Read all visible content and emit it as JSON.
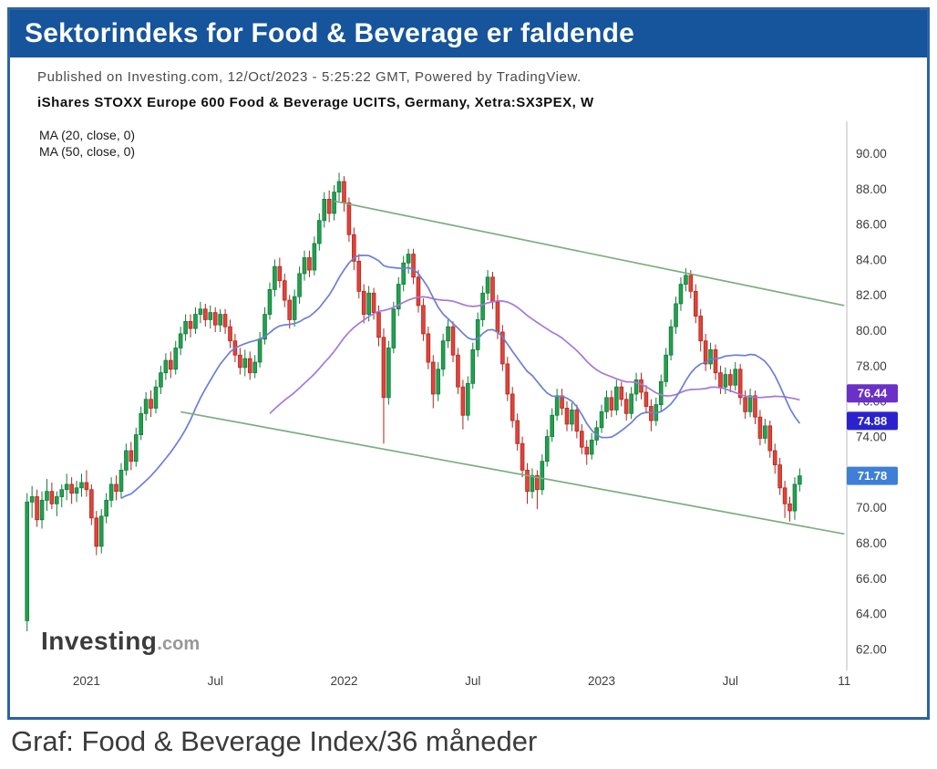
{
  "header": {
    "title": "Sektorindeks for Food & Beverage er faldende"
  },
  "meta": {
    "published": "Published on Investing.com, 12/Oct/2023 - 5:25:22 GMT, Powered by TradingView.",
    "instrument": "iShares STOXX Europe 600 Food & Beverage UCITS, Germany, Xetra:SX3PEX, W"
  },
  "legend": {
    "ma20": "MA (20, close, 0)",
    "ma50": "MA (50, close, 0)"
  },
  "logo": {
    "name": "Investing",
    "suffix": ".com"
  },
  "caption": "Graf: Food & Beverage Index/36 måneder",
  "colors": {
    "title_bar": "#16549c",
    "frame_border": "#2b62a3",
    "candle_up": "#23a050",
    "candle_up_border": "#0f7c38",
    "candle_down": "#e0443a",
    "candle_down_border": "#b0271f",
    "ma20_line": "#6b7fd7",
    "ma50_line": "#a678d8",
    "trendline": "#7cae7f"
  },
  "chart_data": {
    "type": "candlestick",
    "title": "iShares STOXX Europe 600 Food & Beverage UCITS, Germany, Xetra:SX3PEX, W",
    "xlabel": "",
    "ylabel": "",
    "timeframe": "W",
    "ylim": [
      61.2,
      91.8
    ],
    "grid": false,
    "y_ticks": [
      90,
      88,
      86,
      84,
      82,
      80,
      78,
      76,
      74,
      72,
      70,
      68,
      66,
      64,
      62
    ],
    "x_ticks": [
      {
        "label": "2021",
        "index": 12
      },
      {
        "label": "Jul",
        "index": 38
      },
      {
        "label": "2022",
        "index": 64
      },
      {
        "label": "Jul",
        "index": 90
      },
      {
        "label": "2023",
        "index": 116
      },
      {
        "label": "Jul",
        "index": 142
      },
      {
        "label": "11",
        "index": 165
      }
    ],
    "candles": [
      [
        63.6,
        70.8,
        63.0,
        70.3
      ],
      [
        70.3,
        71.2,
        69.4,
        70.6
      ],
      [
        70.6,
        71.0,
        68.9,
        69.3
      ],
      [
        69.3,
        70.9,
        68.8,
        70.4
      ],
      [
        70.4,
        71.6,
        69.8,
        70.9
      ],
      [
        70.9,
        71.4,
        69.9,
        70.2
      ],
      [
        70.2,
        70.9,
        69.5,
        70.6
      ],
      [
        70.6,
        71.3,
        70.0,
        71.0
      ],
      [
        71.0,
        71.9,
        70.4,
        71.3
      ],
      [
        71.3,
        71.7,
        70.2,
        70.8
      ],
      [
        70.8,
        71.5,
        70.3,
        71.1
      ],
      [
        71.1,
        71.9,
        70.6,
        71.4
      ],
      [
        71.4,
        72.1,
        70.6,
        71.0
      ],
      [
        71.0,
        71.3,
        69.0,
        69.4
      ],
      [
        69.4,
        69.8,
        67.3,
        67.8
      ],
      [
        67.8,
        69.9,
        67.4,
        69.5
      ],
      [
        69.5,
        70.8,
        69.1,
        70.4
      ],
      [
        70.4,
        71.7,
        70.0,
        71.3
      ],
      [
        71.3,
        71.8,
        70.4,
        70.9
      ],
      [
        70.9,
        72.5,
        70.5,
        72.1
      ],
      [
        72.1,
        73.6,
        71.8,
        73.2
      ],
      [
        73.2,
        73.7,
        72.1,
        72.6
      ],
      [
        72.6,
        74.5,
        72.3,
        74.1
      ],
      [
        74.1,
        75.7,
        73.8,
        75.3
      ],
      [
        75.3,
        76.5,
        74.9,
        76.1
      ],
      [
        76.1,
        76.6,
        75.1,
        75.6
      ],
      [
        75.6,
        77.2,
        75.3,
        76.8
      ],
      [
        76.8,
        78.0,
        76.4,
        77.6
      ],
      [
        77.6,
        78.7,
        77.2,
        78.3
      ],
      [
        78.3,
        78.8,
        77.3,
        77.8
      ],
      [
        77.8,
        79.4,
        77.5,
        79.0
      ],
      [
        79.0,
        80.2,
        78.6,
        79.8
      ],
      [
        79.8,
        80.9,
        79.4,
        80.5
      ],
      [
        80.5,
        80.9,
        79.6,
        80.1
      ],
      [
        80.1,
        81.3,
        79.8,
        80.9
      ],
      [
        80.9,
        81.6,
        80.4,
        81.2
      ],
      [
        81.2,
        81.5,
        80.2,
        80.6
      ],
      [
        80.6,
        81.4,
        80.1,
        81.0
      ],
      [
        81.0,
        81.3,
        79.9,
        80.3
      ],
      [
        80.3,
        81.2,
        79.9,
        80.9
      ],
      [
        80.9,
        81.2,
        79.8,
        80.2
      ],
      [
        80.2,
        80.6,
        79.0,
        79.4
      ],
      [
        79.4,
        79.8,
        78.2,
        78.6
      ],
      [
        78.6,
        79.0,
        77.5,
        77.9
      ],
      [
        77.9,
        78.9,
        77.4,
        78.4
      ],
      [
        78.4,
        78.8,
        77.2,
        77.6
      ],
      [
        77.6,
        78.6,
        77.3,
        78.2
      ],
      [
        78.2,
        79.9,
        77.9,
        79.5
      ],
      [
        79.5,
        81.3,
        79.2,
        80.9
      ],
      [
        80.9,
        82.7,
        80.6,
        82.3
      ],
      [
        82.3,
        84.0,
        81.9,
        83.6
      ],
      [
        83.6,
        84.1,
        82.4,
        82.8
      ],
      [
        82.8,
        83.2,
        81.3,
        81.7
      ],
      [
        81.7,
        82.0,
        80.1,
        80.6
      ],
      [
        80.6,
        82.3,
        80.2,
        81.9
      ],
      [
        81.9,
        83.6,
        81.5,
        83.2
      ],
      [
        83.2,
        84.5,
        82.8,
        84.1
      ],
      [
        84.1,
        84.5,
        83.0,
        83.4
      ],
      [
        83.4,
        85.3,
        83.1,
        84.9
      ],
      [
        84.9,
        86.6,
        84.5,
        86.2
      ],
      [
        86.2,
        87.8,
        85.8,
        87.4
      ],
      [
        87.4,
        87.9,
        86.1,
        86.6
      ],
      [
        86.6,
        88.2,
        86.2,
        87.8
      ],
      [
        87.8,
        88.9,
        87.3,
        88.4
      ],
      [
        88.4,
        88.7,
        86.7,
        87.2
      ],
      [
        87.2,
        87.5,
        85.0,
        85.4
      ],
      [
        85.4,
        85.8,
        83.4,
        83.9
      ],
      [
        83.9,
        84.3,
        81.8,
        82.2
      ],
      [
        82.2,
        82.6,
        80.4,
        80.9
      ],
      [
        80.9,
        82.5,
        80.5,
        82.1
      ],
      [
        82.1,
        82.4,
        80.6,
        81.0
      ],
      [
        81.0,
        81.4,
        79.1,
        79.6
      ],
      [
        79.6,
        80.1,
        73.6,
        76.2
      ],
      [
        76.2,
        79.4,
        75.8,
        79.0
      ],
      [
        79.0,
        81.6,
        78.7,
        81.2
      ],
      [
        81.2,
        83.0,
        80.8,
        82.6
      ],
      [
        82.6,
        84.2,
        82.2,
        83.8
      ],
      [
        83.8,
        84.6,
        83.2,
        84.3
      ],
      [
        84.3,
        84.6,
        82.6,
        83.0
      ],
      [
        83.0,
        83.4,
        81.0,
        81.4
      ],
      [
        81.4,
        81.8,
        79.4,
        79.8
      ],
      [
        79.8,
        80.2,
        77.8,
        78.2
      ],
      [
        78.2,
        78.6,
        75.6,
        76.4
      ],
      [
        76.4,
        78.2,
        76.0,
        77.8
      ],
      [
        77.8,
        79.8,
        77.4,
        79.4
      ],
      [
        79.4,
        80.6,
        79.0,
        80.2
      ],
      [
        80.2,
        80.5,
        78.2,
        78.6
      ],
      [
        78.6,
        79.0,
        76.4,
        76.8
      ],
      [
        76.8,
        77.2,
        74.4,
        75.2
      ],
      [
        75.2,
        77.4,
        74.9,
        77.0
      ],
      [
        77.0,
        79.3,
        76.7,
        78.9
      ],
      [
        78.9,
        81.0,
        78.5,
        80.6
      ],
      [
        80.6,
        82.5,
        80.2,
        82.1
      ],
      [
        82.1,
        83.4,
        81.7,
        83.0
      ],
      [
        83.0,
        83.3,
        81.2,
        81.6
      ],
      [
        81.6,
        82.0,
        79.5,
        79.9
      ],
      [
        79.9,
        80.3,
        77.7,
        78.1
      ],
      [
        78.1,
        78.5,
        76.0,
        76.4
      ],
      [
        76.4,
        76.8,
        74.5,
        74.9
      ],
      [
        74.9,
        75.3,
        73.2,
        73.6
      ],
      [
        73.6,
        74.0,
        71.7,
        72.1
      ],
      [
        72.1,
        72.5,
        70.2,
        70.9
      ],
      [
        70.9,
        72.2,
        70.5,
        71.8
      ],
      [
        71.8,
        72.1,
        69.9,
        71.0
      ],
      [
        71.0,
        73.0,
        70.7,
        72.6
      ],
      [
        72.6,
        74.4,
        72.3,
        74.0
      ],
      [
        74.0,
        75.6,
        73.7,
        75.2
      ],
      [
        75.2,
        76.7,
        74.9,
        76.3
      ],
      [
        76.3,
        76.7,
        75.2,
        75.6
      ],
      [
        75.6,
        76.0,
        74.3,
        74.7
      ],
      [
        74.7,
        75.9,
        74.3,
        75.5
      ],
      [
        75.5,
        75.8,
        73.9,
        74.3
      ],
      [
        74.3,
        74.7,
        73.0,
        73.4
      ],
      [
        73.4,
        73.8,
        72.4,
        73.0
      ],
      [
        73.0,
        74.2,
        72.7,
        73.8
      ],
      [
        73.8,
        74.9,
        73.5,
        74.5
      ],
      [
        74.5,
        75.8,
        74.2,
        75.4
      ],
      [
        75.4,
        76.6,
        75.0,
        76.2
      ],
      [
        76.2,
        76.6,
        75.1,
        75.5
      ],
      [
        75.5,
        77.2,
        75.2,
        76.8
      ],
      [
        76.8,
        77.1,
        75.7,
        76.1
      ],
      [
        76.1,
        76.5,
        74.9,
        75.3
      ],
      [
        75.3,
        76.8,
        75.0,
        76.4
      ],
      [
        76.4,
        77.6,
        76.0,
        77.2
      ],
      [
        77.2,
        77.6,
        76.1,
        76.5
      ],
      [
        76.5,
        76.9,
        75.3,
        75.7
      ],
      [
        75.7,
        76.1,
        74.3,
        74.9
      ],
      [
        74.9,
        76.2,
        74.6,
        75.8
      ],
      [
        75.8,
        77.5,
        75.4,
        77.1
      ],
      [
        77.1,
        79.0,
        76.8,
        78.6
      ],
      [
        78.6,
        80.6,
        78.3,
        80.2
      ],
      [
        80.2,
        81.9,
        79.8,
        81.5
      ],
      [
        81.5,
        83.0,
        81.1,
        82.6
      ],
      [
        82.6,
        83.5,
        82.2,
        83.1
      ],
      [
        83.1,
        83.4,
        81.8,
        82.2
      ],
      [
        82.2,
        82.6,
        80.4,
        80.8
      ],
      [
        80.8,
        81.2,
        78.8,
        79.4
      ],
      [
        79.4,
        79.8,
        77.7,
        78.1
      ],
      [
        78.1,
        79.3,
        77.8,
        78.9
      ],
      [
        78.9,
        79.2,
        77.2,
        77.6
      ],
      [
        77.6,
        78.0,
        76.4,
        76.8
      ],
      [
        76.8,
        77.9,
        76.4,
        77.5
      ],
      [
        77.5,
        77.8,
        76.5,
        76.9
      ],
      [
        76.9,
        78.2,
        76.6,
        77.8
      ],
      [
        77.8,
        78.1,
        75.8,
        76.2
      ],
      [
        76.2,
        76.6,
        75.0,
        75.4
      ],
      [
        75.4,
        76.7,
        75.1,
        76.3
      ],
      [
        76.3,
        76.6,
        74.7,
        75.1
      ],
      [
        75.1,
        75.5,
        73.5,
        73.9
      ],
      [
        73.9,
        75.0,
        73.6,
        74.6
      ],
      [
        74.6,
        74.9,
        72.8,
        73.2
      ],
      [
        73.2,
        73.6,
        71.9,
        72.4
      ],
      [
        72.4,
        72.8,
        70.7,
        71.1
      ],
      [
        71.1,
        71.5,
        69.4,
        70.2
      ],
      [
        70.2,
        70.6,
        69.2,
        69.8
      ],
      [
        69.8,
        71.7,
        69.3,
        71.3
      ],
      [
        71.3,
        72.2,
        70.9,
        71.78
      ]
    ],
    "overlays": {
      "ma20": {
        "label": "MA (20, close, 0)",
        "period": 20,
        "color": "#6b7fd7",
        "last": 74.88
      },
      "ma50": {
        "label": "MA (50, close, 0)",
        "period": 50,
        "color": "#a678d8",
        "last": 76.44
      }
    },
    "trendlines": [
      {
        "from": [
          62,
          87.3
        ],
        "to": [
          165,
          81.4
        ],
        "color": "#7cae7f"
      },
      {
        "from": [
          31,
          75.4
        ],
        "to": [
          165,
          68.5
        ],
        "color": "#7cae7f"
      }
    ],
    "price_badges": [
      {
        "label": "76.44",
        "price": 76.44,
        "color": "#6a30c8"
      },
      {
        "label": "74.88",
        "price": 74.88,
        "color": "#2a23cd"
      },
      {
        "label": "71.78",
        "price": 71.78,
        "color": "#3f7fd6"
      }
    ],
    "last_close": 71.78,
    "candle_colors": {
      "up_fill": "#23a050",
      "up_border": "#0f7c38",
      "down_fill": "#e0443a",
      "down_border": "#b0271f"
    }
  }
}
